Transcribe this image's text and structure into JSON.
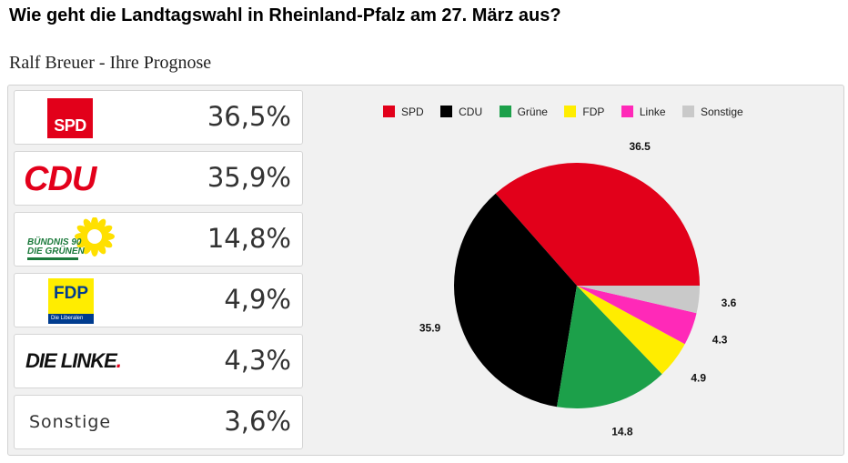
{
  "page": {
    "title": "Wie geht die Landtagswahl in Rheinland-Pfalz am 27. März aus?",
    "subtitle": "Ralf Breuer - Ihre Prognose"
  },
  "parties": [
    {
      "key": "spd",
      "logo_text": "SPD",
      "value_label": "36,5%"
    },
    {
      "key": "cdu",
      "logo_text": "CDU",
      "value_label": "35,9%"
    },
    {
      "key": "gruene",
      "logo_line1": "BÜNDNIS 90",
      "logo_line2": "DIE GRÜNEN",
      "value_label": "14,8%"
    },
    {
      "key": "fdp",
      "logo_text": "FDP",
      "logo_sub": "Die Liberalen",
      "value_label": "4,9%"
    },
    {
      "key": "linke",
      "logo_text": "DIE LINKE",
      "value_label": "4,3%"
    },
    {
      "key": "sonstige",
      "label": "Sonstige",
      "value_label": "3,6%"
    }
  ],
  "chart_data": {
    "type": "pie",
    "categories": [
      "SPD",
      "CDU",
      "Grüne",
      "FDP",
      "Linke",
      "Sonstige"
    ],
    "values": [
      36.5,
      35.9,
      14.8,
      4.9,
      4.3,
      3.6
    ],
    "colors": [
      "#e2001a",
      "#000000",
      "#1ca04a",
      "#ffed00",
      "#ff29b8",
      "#c9c9c9"
    ],
    "data_labels": [
      "36.5",
      "35.9",
      "14.8",
      "4.9",
      "4.3",
      "3.6"
    ],
    "legend_position": "top",
    "start_angle_deg": 0,
    "direction": "counterclockwise"
  }
}
